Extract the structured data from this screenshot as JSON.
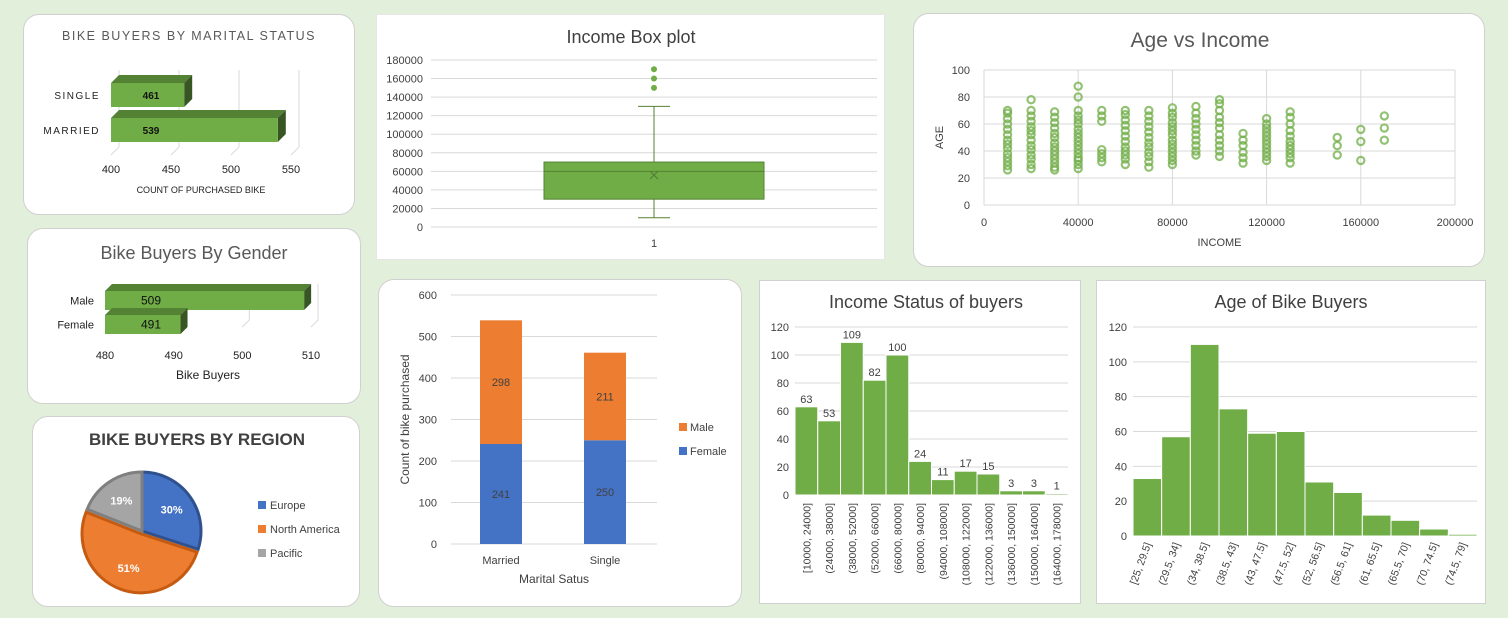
{
  "colors": {
    "green": "#70ad47",
    "greenDark": "#548235",
    "greenDeep": "#375623",
    "orange": "#ed7d31",
    "blue": "#4472c4",
    "gray": "#a5a5a5",
    "grid": "#d9d9d9",
    "text": "#595959",
    "background": "#e2efda"
  },
  "chart_data": [
    {
      "id": "marital",
      "type": "bar",
      "orientation": "horizontal",
      "style": "3d",
      "title": "BIKE BUYERS BY MARITAL STATUS",
      "categories": [
        "SINGLE",
        "MARRIED"
      ],
      "values": [
        461,
        539
      ],
      "value_labels": [
        "461",
        "539"
      ],
      "xlabel": "COUNT OF PURCHASED BIKE",
      "xlim": [
        400,
        550
      ],
      "xticks": [
        "400",
        "450",
        "500",
        "550"
      ],
      "legend": "none"
    },
    {
      "id": "gender",
      "type": "bar",
      "orientation": "horizontal",
      "style": "3d",
      "title": "Bike Buyers By Gender",
      "categories": [
        "Male",
        "Female"
      ],
      "values": [
        509,
        491
      ],
      "value_labels": [
        "509",
        "491"
      ],
      "xlabel": "Bike Buyers",
      "xlim": [
        480,
        510
      ],
      "xticks": [
        "480",
        "490",
        "500",
        "510"
      ],
      "legend": "none"
    },
    {
      "id": "region",
      "type": "pie",
      "title": "BIKE BUYERS BY REGION",
      "categories": [
        "Europe",
        "North America",
        "Pacific"
      ],
      "values": [
        30,
        51,
        19
      ],
      "value_labels": [
        "30%",
        "51%",
        "19%"
      ],
      "legend": "right"
    },
    {
      "id": "boxplot",
      "type": "box",
      "title": "Income Box plot",
      "categories": [
        "1"
      ],
      "box": {
        "min": 10000,
        "q1": 30000,
        "median": 60000,
        "q3": 70000,
        "max": 130000,
        "mean": 56000,
        "outliers": [
          150000,
          160000,
          170000
        ]
      },
      "ylim": [
        0,
        180000
      ],
      "yticks": [
        "0",
        "20000",
        "40000",
        "60000",
        "80000",
        "100000",
        "120000",
        "140000",
        "160000",
        "180000"
      ],
      "legend": "none"
    },
    {
      "id": "scatter",
      "type": "scatter",
      "title": "Age vs Income",
      "xlabel": "INCOME",
      "ylabel": "AGE",
      "xlim": [
        0,
        200000
      ],
      "ylim": [
        0,
        100
      ],
      "xticks": [
        "0",
        "40000",
        "80000",
        "120000",
        "160000",
        "200000"
      ],
      "yticks": [
        "0",
        "20",
        "40",
        "60",
        "80",
        "100"
      ],
      "series": [
        {
          "x": 10000,
          "y": [
            26,
            29,
            32,
            35,
            38,
            42,
            45,
            48,
            52,
            56,
            60,
            64,
            68,
            70
          ]
        },
        {
          "x": 20000,
          "y": [
            27,
            30,
            34,
            37,
            41,
            44,
            48,
            52,
            55,
            58,
            62,
            66,
            70,
            78
          ]
        },
        {
          "x": 30000,
          "y": [
            26,
            28,
            31,
            34,
            37,
            40,
            43,
            46,
            50,
            53,
            57,
            61,
            65,
            69
          ]
        },
        {
          "x": 40000,
          "y": [
            27,
            30,
            33,
            35,
            38,
            41,
            44,
            47,
            50,
            53,
            56,
            60,
            63,
            66,
            70,
            80,
            88
          ]
        },
        {
          "x": 50000,
          "y": [
            32,
            35,
            38,
            41,
            62,
            66,
            70
          ]
        },
        {
          "x": 60000,
          "y": [
            30,
            34,
            37,
            40,
            43,
            47,
            51,
            55,
            59,
            63,
            67,
            70
          ]
        },
        {
          "x": 70000,
          "y": [
            28,
            32,
            36,
            39,
            43,
            46,
            50,
            54,
            58,
            62,
            66,
            70
          ]
        },
        {
          "x": 80000,
          "y": [
            30,
            33,
            36,
            39,
            42,
            45,
            48,
            52,
            55,
            58,
            61,
            65,
            68,
            72
          ]
        },
        {
          "x": 90000,
          "y": [
            37,
            40,
            44,
            48,
            52,
            56,
            60,
            64,
            68,
            73
          ]
        },
        {
          "x": 100000,
          "y": [
            36,
            40,
            44,
            48,
            52,
            57,
            61,
            65,
            70,
            75,
            78
          ]
        },
        {
          "x": 110000,
          "y": [
            31,
            35,
            39,
            44,
            48,
            53
          ]
        },
        {
          "x": 120000,
          "y": [
            33,
            36,
            39,
            42,
            45,
            48,
            51,
            54,
            57,
            60,
            64
          ]
        },
        {
          "x": 130000,
          "y": [
            31,
            35,
            38,
            41,
            44,
            47,
            51,
            55,
            60,
            65,
            69
          ]
        },
        {
          "x": 150000,
          "y": [
            37,
            44,
            50
          ]
        },
        {
          "x": 160000,
          "y": [
            33,
            47,
            56
          ]
        },
        {
          "x": 170000,
          "y": [
            48,
            57,
            66
          ]
        }
      ]
    },
    {
      "id": "stacked",
      "type": "bar",
      "stacked": true,
      "title": "",
      "categories": [
        "Married",
        "Single"
      ],
      "series": [
        {
          "name": "Female",
          "values": [
            241,
            250
          ]
        },
        {
          "name": "Male",
          "values": [
            298,
            211
          ]
        }
      ],
      "xlabel": "Marital Satus",
      "ylabel": "Count of bike purchased",
      "ylim": [
        0,
        600
      ],
      "yticks": [
        "0",
        "100",
        "200",
        "300",
        "400",
        "500",
        "600"
      ],
      "legend": "right"
    },
    {
      "id": "income_hist",
      "type": "bar",
      "style": "histogram",
      "title": "Income Status of buyers",
      "categories": [
        "[10000, 24000]",
        "(24000, 38000]",
        "(38000, 52000]",
        "(52000, 66000]",
        "(66000, 80000]",
        "(80000, 94000]",
        "(94000, 108000]",
        "(108000, 122000]",
        "(122000, 136000]",
        "(136000, 150000]",
        "(150000, 164000]",
        "(164000, 178000]"
      ],
      "values": [
        63,
        53,
        109,
        82,
        100,
        24,
        11,
        17,
        15,
        3,
        3,
        1
      ],
      "value_labels": [
        "63",
        "53",
        "109",
        "82",
        "100",
        "24",
        "11",
        "17",
        "15",
        "3",
        "3",
        "1"
      ],
      "ylim": [
        0,
        120
      ],
      "yticks": [
        "0",
        "20",
        "40",
        "60",
        "80",
        "100",
        "120"
      ],
      "legend": "none"
    },
    {
      "id": "age_hist",
      "type": "bar",
      "style": "histogram",
      "title": "Age of Bike Buyers",
      "categories": [
        "[25, 29.5]",
        "(29.5, 34]",
        "(34, 38.5]",
        "(38.5, 43]",
        "(43, 47.5]",
        "(47.5, 52]",
        "(52, 56.5]",
        "(56.5, 61]",
        "(61, 65.5]",
        "(65.5, 70]",
        "(70, 74.5]",
        "(74.5, 79]"
      ],
      "values": [
        33,
        57,
        110,
        73,
        59,
        60,
        31,
        25,
        12,
        9,
        4,
        1
      ],
      "ylim": [
        0,
        120
      ],
      "yticks": [
        "0",
        "20",
        "40",
        "60",
        "80",
        "100",
        "120"
      ],
      "legend": "none"
    }
  ]
}
